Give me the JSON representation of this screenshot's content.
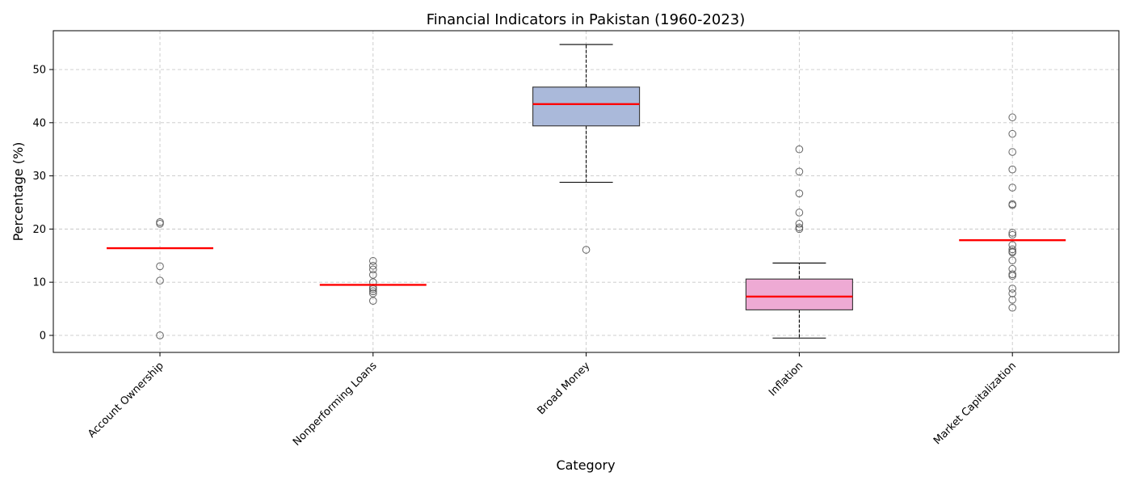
{
  "chart_data": {
    "type": "boxplot",
    "title": "Financial Indicators in Pakistan (1960-2023)",
    "xlabel": "Category",
    "ylabel": "Percentage (%)",
    "ylim": [
      -3.2,
      57.3
    ],
    "yticks": [
      0,
      10,
      20,
      30,
      40,
      50
    ],
    "grid": true,
    "grid_style": "dashed",
    "tick_rotation_deg": -45,
    "colors": {
      "median": "#ff0000",
      "box_edge": "#333333",
      "whisker": "#000000",
      "grid": "#c8c8c8",
      "outlier_edge": "#555555"
    },
    "series": [
      {
        "category": "Account Ownership",
        "fill": null,
        "q1": 16.4,
        "median": 16.4,
        "q3": 16.4,
        "whisker_low": 16.4,
        "whisker_high": 16.4,
        "outliers": [
          21.3,
          21.0,
          13.0,
          10.3,
          0.0
        ]
      },
      {
        "category": "Nonperforming Loans",
        "fill": null,
        "q1": 9.5,
        "median": 9.5,
        "q3": 9.5,
        "whisker_low": 9.5,
        "whisker_high": 9.5,
        "outliers": [
          14.0,
          13.1,
          12.4,
          11.4,
          10.0,
          9.0,
          8.7,
          8.3,
          7.9,
          6.5
        ]
      },
      {
        "category": "Broad Money",
        "fill": "#aab9da",
        "q1": 39.4,
        "median": 43.5,
        "q3": 46.7,
        "whisker_low": 28.8,
        "whisker_high": 54.7,
        "outliers": [
          16.1
        ]
      },
      {
        "category": "Inflation",
        "fill": "#eeaad4",
        "q1": 4.8,
        "median": 7.3,
        "q3": 10.6,
        "whisker_low": -0.5,
        "whisker_high": 13.6,
        "outliers": [
          35.0,
          30.8,
          26.7,
          23.1,
          21.0,
          20.3,
          20.0
        ]
      },
      {
        "category": "Market Capitalization",
        "fill": null,
        "q1": 17.9,
        "median": 17.9,
        "q3": 17.9,
        "whisker_low": 17.9,
        "whisker_high": 17.9,
        "outliers": [
          41.0,
          37.9,
          34.5,
          31.2,
          27.8,
          24.7,
          24.5,
          19.3,
          18.9,
          17.0,
          16.2,
          15.8,
          15.6,
          14.1,
          12.5,
          11.5,
          11.2,
          8.8,
          7.9,
          6.7,
          5.2
        ]
      }
    ]
  }
}
